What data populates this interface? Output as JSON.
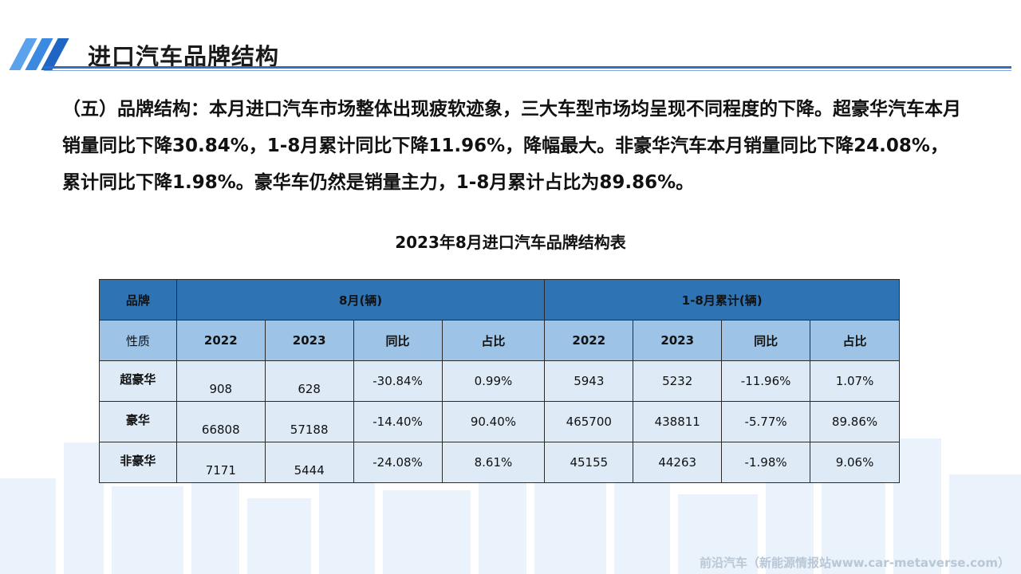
{
  "header": {
    "title": "进口汽车品牌结构"
  },
  "paragraph": "（五）品牌结构：本月进口汽车市场整体出现疲软迹象，三大车型市场均呈现不同程度的下降。超豪华汽车本月销量同比下降30.84%，1-8月累计同比下降11.96%，降幅最大。非豪华汽车本月销量同比下降24.08%，累计同比下降1.98%。豪华车仍然是销量主力，1-8月累计占比为89.86%。",
  "table": {
    "title": "2023年8月进口汽车品牌结构表",
    "head1": {
      "brand": "品牌",
      "month": "8月(辆)",
      "cumulative": "1-8月累计(辆)"
    },
    "head2": {
      "nature": "性质",
      "cols": [
        "2022",
        "2023",
        "同比",
        "占比",
        "2022",
        "2023",
        "同比",
        "占比"
      ]
    },
    "rows": [
      {
        "name": "超豪华",
        "cells": [
          "908",
          "628",
          "-30.84%",
          "0.99%",
          "5943",
          "5232",
          "-11.96%",
          "1.07%"
        ]
      },
      {
        "name": "豪华",
        "cells": [
          "66808",
          "57188",
          "-14.40%",
          "90.40%",
          "465700",
          "438811",
          "-5.77%",
          "89.86%"
        ]
      },
      {
        "name": "非豪华",
        "cells": [
          "7171",
          "5444",
          "-24.08%",
          "8.61%",
          "45155",
          "44263",
          "-1.98%",
          "9.06%"
        ]
      }
    ]
  },
  "footer": {
    "source": "前沿汽车（新能源情报站www.car-metaverse.com）"
  },
  "colors": {
    "accent": "#2f7ed8",
    "header_row": "#2e74b5",
    "subheader_row": "#9dc3e6",
    "data_row": "#deeaf6"
  }
}
